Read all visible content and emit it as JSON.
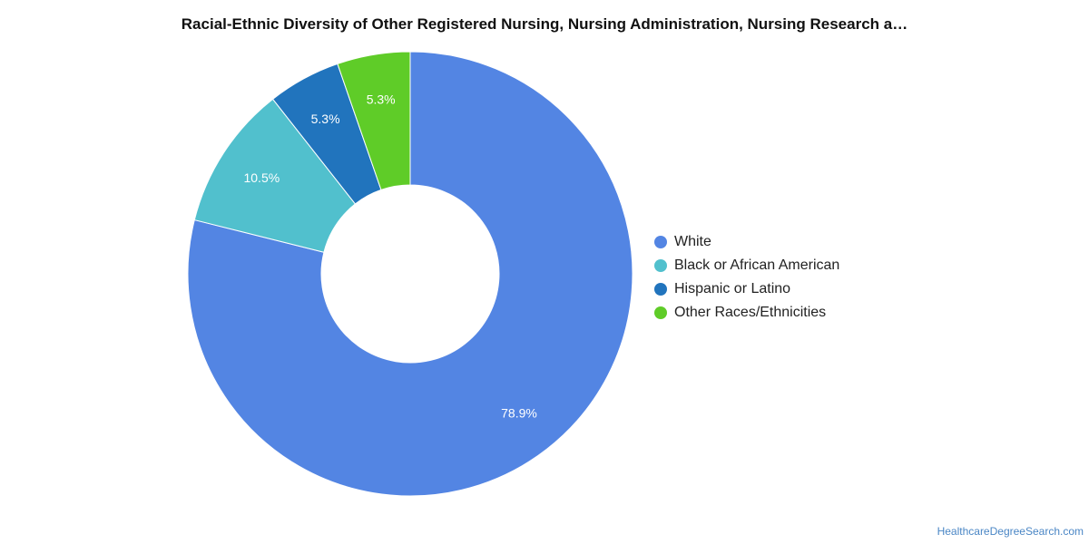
{
  "chart_data": {
    "type": "pie",
    "subtype": "donut",
    "title": "Racial-Ethnic Diversity of Other Registered Nursing, Nursing Administration, Nursing Research a…",
    "categories": [
      "White",
      "Black or African American",
      "Hispanic or Latino",
      "Other Races/Ethnicities"
    ],
    "values": [
      78.9,
      10.5,
      5.3,
      5.3
    ],
    "value_labels": [
      "78.9%",
      "10.5%",
      "5.3%",
      "5.3%"
    ],
    "colors": [
      "#5385e3",
      "#51c0cd",
      "#2174bd",
      "#5fcc28"
    ],
    "legend_position": "right"
  },
  "credit": "HealthcareDegreeSearch.com"
}
